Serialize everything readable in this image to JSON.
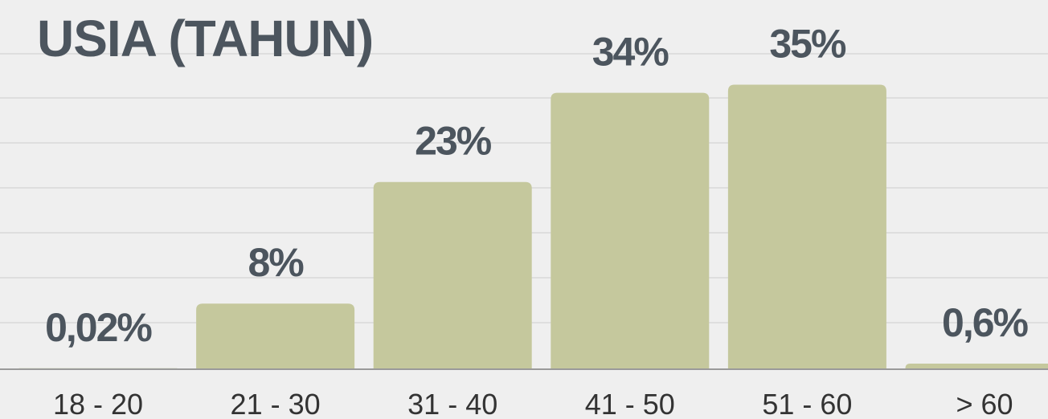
{
  "chart_data": {
    "type": "bar",
    "title": "USIA (TAHUN)",
    "categories": [
      "18 - 20",
      "21 - 30",
      "31 - 40",
      "41 - 50",
      "51 - 60",
      "> 60"
    ],
    "values": [
      0.02,
      8,
      23,
      34,
      35,
      0.6
    ],
    "value_labels": [
      "0,02%",
      "8%",
      "23%",
      "34%",
      "35%",
      "0,6%"
    ],
    "color": "#c5c89d",
    "ylim": [
      0,
      45
    ]
  }
}
